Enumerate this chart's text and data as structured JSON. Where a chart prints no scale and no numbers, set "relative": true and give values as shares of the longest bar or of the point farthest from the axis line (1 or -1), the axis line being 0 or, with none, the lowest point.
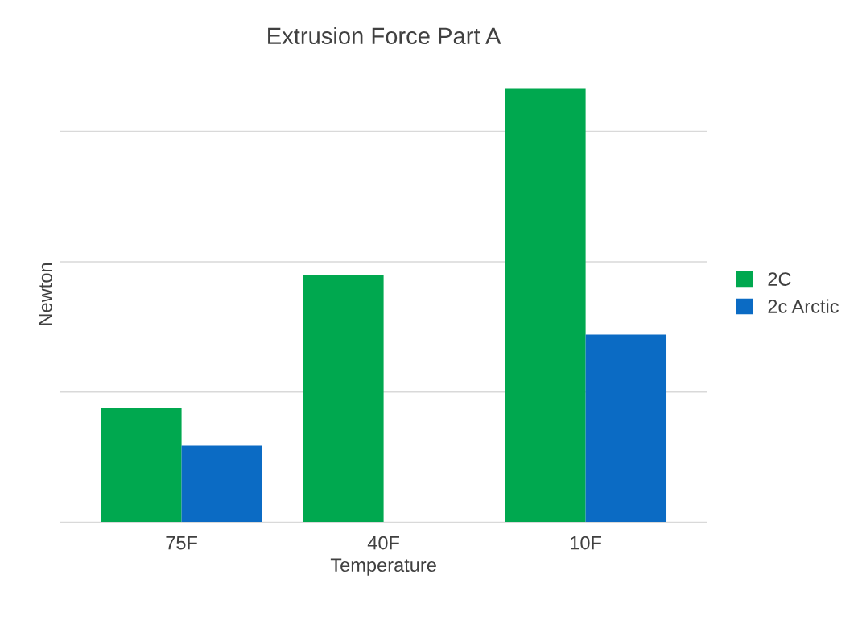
{
  "chart_data": {
    "type": "bar",
    "title": "Extrusion Force Part A",
    "xlabel": "Temperature",
    "ylabel": "Newton",
    "categories": [
      "75F",
      "40F",
      "10F"
    ],
    "relative": true,
    "series": [
      {
        "name": "2C",
        "color": "#00a84f",
        "values": [
          0.264,
          0.57,
          1
        ]
      },
      {
        "name": "2c Arctic",
        "color": "#0b6bc4",
        "values": [
          0.176,
          null,
          0.432
        ]
      }
    ],
    "grid": "y",
    "legend": "right"
  }
}
